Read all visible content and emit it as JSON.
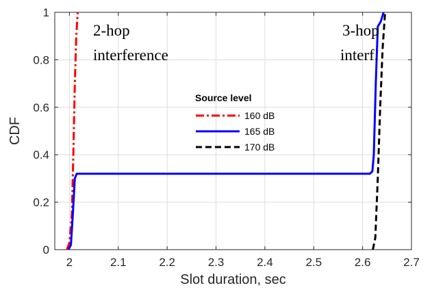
{
  "chart_data": {
    "type": "line",
    "xlabel": "Slot duration, sec",
    "ylabel": "CDF",
    "xlim": [
      1.97,
      2.7
    ],
    "ylim": [
      0,
      1
    ],
    "x_ticks": [
      2,
      2.1,
      2.2,
      2.3,
      2.4,
      2.5,
      2.6,
      2.7
    ],
    "y_ticks": [
      0,
      0.2,
      0.4,
      0.6,
      0.8,
      1
    ],
    "grid": true,
    "legend": {
      "title": "Source level",
      "position": "center"
    },
    "series": [
      {
        "name": "160 dB",
        "color": "#ff0000",
        "style": "dash-dot",
        "points": [
          [
            1.995,
            0
          ],
          [
            2.0,
            0.03
          ],
          [
            2.005,
            0.15
          ],
          [
            2.008,
            0.4
          ],
          [
            2.011,
            0.7
          ],
          [
            2.014,
            0.9
          ],
          [
            2.017,
            1.0
          ]
        ]
      },
      {
        "name": "165 dB",
        "color": "#0000ff",
        "style": "solid",
        "points": [
          [
            1.998,
            0
          ],
          [
            2.003,
            0.02
          ],
          [
            2.007,
            0.15
          ],
          [
            2.011,
            0.3
          ],
          [
            2.015,
            0.32
          ],
          [
            2.4,
            0.32
          ],
          [
            2.615,
            0.32
          ],
          [
            2.62,
            0.33
          ],
          [
            2.623,
            0.4
          ],
          [
            2.627,
            0.7
          ],
          [
            2.631,
            0.94
          ],
          [
            2.637,
            0.96
          ],
          [
            2.643,
            1.0
          ]
        ]
      },
      {
        "name": "170 dB",
        "color": "#000000",
        "style": "dashed",
        "points": [
          [
            2.621,
            0
          ],
          [
            2.626,
            0.05
          ],
          [
            2.631,
            0.3
          ],
          [
            2.636,
            0.6
          ],
          [
            2.641,
            0.85
          ],
          [
            2.646,
            1.0
          ]
        ]
      }
    ],
    "annotations": [
      {
        "lines": [
          "2-hop",
          "interference"
        ]
      },
      {
        "lines": [
          "3-hop",
          "interf."
        ]
      }
    ]
  }
}
